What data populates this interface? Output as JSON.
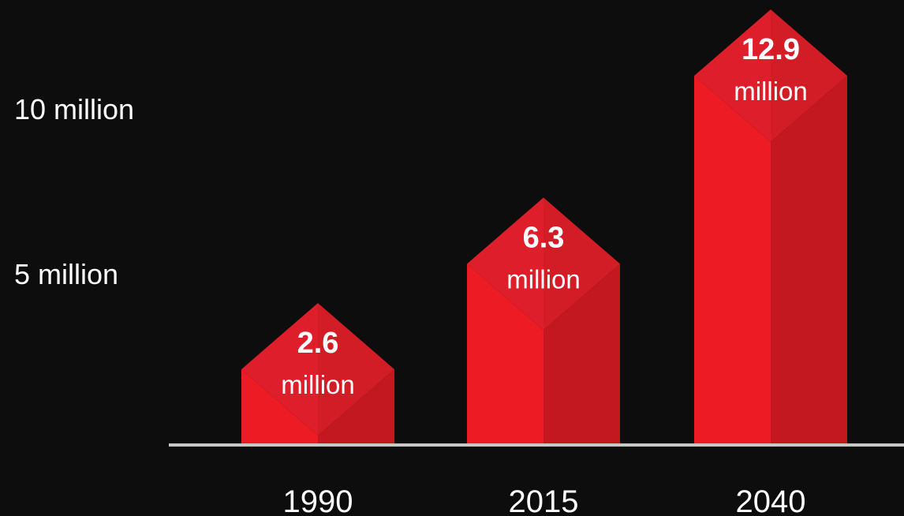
{
  "chart_data": {
    "type": "bar",
    "categories": [
      "1990",
      "2015",
      "2040"
    ],
    "values": [
      2.6,
      6.3,
      12.9
    ],
    "value_labels": [
      "2.6",
      "6.3",
      "12.9"
    ],
    "value_unit": "million",
    "y_ticks": [
      {
        "value": 5,
        "label": "5 million"
      },
      {
        "value": 10,
        "label": "10 million"
      }
    ],
    "ylim": [
      0,
      13
    ],
    "grid": false,
    "legend": "none",
    "colors": {
      "background": "#0d0d0d",
      "bar_front": "#ed1c24",
      "bar_side": "#c3181f",
      "roof_left": "#de1f2b",
      "roof_right": "#d21c26",
      "axis": "#c8c8c8",
      "text": "#ffffff"
    }
  }
}
